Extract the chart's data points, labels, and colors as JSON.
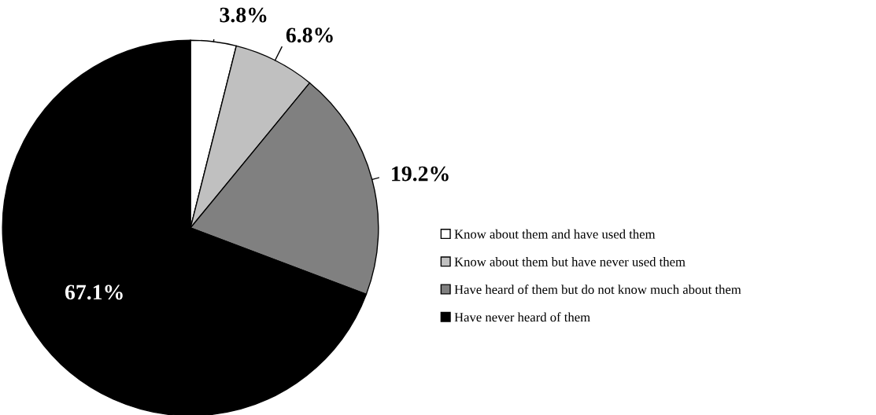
{
  "chart_data": {
    "type": "pie",
    "categories": [
      "Know about them and have used them",
      "Know about them but have never used them",
      "Have heard of them but do not know much about them",
      "Have never heard of them"
    ],
    "values": [
      3.8,
      6.8,
      19.2,
      67.1
    ],
    "colors": [
      "#ffffff",
      "#c0c0c0",
      "#808080",
      "#000000"
    ],
    "value_labels": [
      "3.8%",
      "6.8%",
      "19.2%",
      "67.1%"
    ],
    "legend": "right"
  }
}
